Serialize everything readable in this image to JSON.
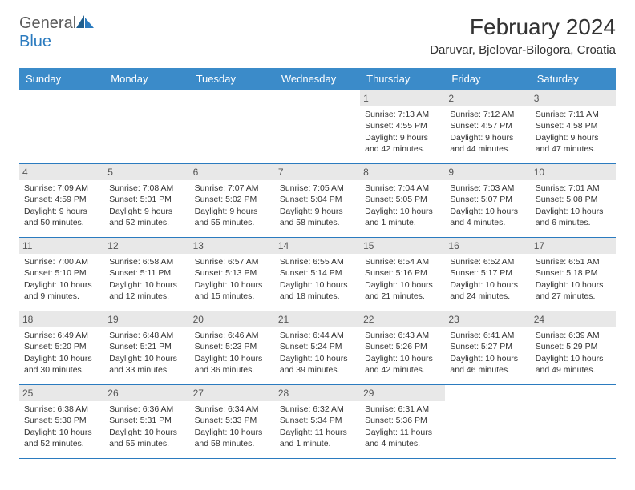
{
  "logo": {
    "text1": "General",
    "text2": "Blue"
  },
  "title": "February 2024",
  "location": "Daruvar, Bjelovar-Bilogora, Croatia",
  "colors": {
    "header_bg": "#3b8bc9",
    "border": "#2b7bbf",
    "day_bg": "#e8e8e8",
    "text": "#333333",
    "logo_gray": "#5a5a5a",
    "logo_blue": "#2b7bbf"
  },
  "weekdays": [
    "Sunday",
    "Monday",
    "Tuesday",
    "Wednesday",
    "Thursday",
    "Friday",
    "Saturday"
  ],
  "weeks": [
    [
      {
        "day": "",
        "sunrise": "",
        "sunset": "",
        "daylight": ""
      },
      {
        "day": "",
        "sunrise": "",
        "sunset": "",
        "daylight": ""
      },
      {
        "day": "",
        "sunrise": "",
        "sunset": "",
        "daylight": ""
      },
      {
        "day": "",
        "sunrise": "",
        "sunset": "",
        "daylight": ""
      },
      {
        "day": "1",
        "sunrise": "Sunrise: 7:13 AM",
        "sunset": "Sunset: 4:55 PM",
        "daylight": "Daylight: 9 hours and 42 minutes."
      },
      {
        "day": "2",
        "sunrise": "Sunrise: 7:12 AM",
        "sunset": "Sunset: 4:57 PM",
        "daylight": "Daylight: 9 hours and 44 minutes."
      },
      {
        "day": "3",
        "sunrise": "Sunrise: 7:11 AM",
        "sunset": "Sunset: 4:58 PM",
        "daylight": "Daylight: 9 hours and 47 minutes."
      }
    ],
    [
      {
        "day": "4",
        "sunrise": "Sunrise: 7:09 AM",
        "sunset": "Sunset: 4:59 PM",
        "daylight": "Daylight: 9 hours and 50 minutes."
      },
      {
        "day": "5",
        "sunrise": "Sunrise: 7:08 AM",
        "sunset": "Sunset: 5:01 PM",
        "daylight": "Daylight: 9 hours and 52 minutes."
      },
      {
        "day": "6",
        "sunrise": "Sunrise: 7:07 AM",
        "sunset": "Sunset: 5:02 PM",
        "daylight": "Daylight: 9 hours and 55 minutes."
      },
      {
        "day": "7",
        "sunrise": "Sunrise: 7:05 AM",
        "sunset": "Sunset: 5:04 PM",
        "daylight": "Daylight: 9 hours and 58 minutes."
      },
      {
        "day": "8",
        "sunrise": "Sunrise: 7:04 AM",
        "sunset": "Sunset: 5:05 PM",
        "daylight": "Daylight: 10 hours and 1 minute."
      },
      {
        "day": "9",
        "sunrise": "Sunrise: 7:03 AM",
        "sunset": "Sunset: 5:07 PM",
        "daylight": "Daylight: 10 hours and 4 minutes."
      },
      {
        "day": "10",
        "sunrise": "Sunrise: 7:01 AM",
        "sunset": "Sunset: 5:08 PM",
        "daylight": "Daylight: 10 hours and 6 minutes."
      }
    ],
    [
      {
        "day": "11",
        "sunrise": "Sunrise: 7:00 AM",
        "sunset": "Sunset: 5:10 PM",
        "daylight": "Daylight: 10 hours and 9 minutes."
      },
      {
        "day": "12",
        "sunrise": "Sunrise: 6:58 AM",
        "sunset": "Sunset: 5:11 PM",
        "daylight": "Daylight: 10 hours and 12 minutes."
      },
      {
        "day": "13",
        "sunrise": "Sunrise: 6:57 AM",
        "sunset": "Sunset: 5:13 PM",
        "daylight": "Daylight: 10 hours and 15 minutes."
      },
      {
        "day": "14",
        "sunrise": "Sunrise: 6:55 AM",
        "sunset": "Sunset: 5:14 PM",
        "daylight": "Daylight: 10 hours and 18 minutes."
      },
      {
        "day": "15",
        "sunrise": "Sunrise: 6:54 AM",
        "sunset": "Sunset: 5:16 PM",
        "daylight": "Daylight: 10 hours and 21 minutes."
      },
      {
        "day": "16",
        "sunrise": "Sunrise: 6:52 AM",
        "sunset": "Sunset: 5:17 PM",
        "daylight": "Daylight: 10 hours and 24 minutes."
      },
      {
        "day": "17",
        "sunrise": "Sunrise: 6:51 AM",
        "sunset": "Sunset: 5:18 PM",
        "daylight": "Daylight: 10 hours and 27 minutes."
      }
    ],
    [
      {
        "day": "18",
        "sunrise": "Sunrise: 6:49 AM",
        "sunset": "Sunset: 5:20 PM",
        "daylight": "Daylight: 10 hours and 30 minutes."
      },
      {
        "day": "19",
        "sunrise": "Sunrise: 6:48 AM",
        "sunset": "Sunset: 5:21 PM",
        "daylight": "Daylight: 10 hours and 33 minutes."
      },
      {
        "day": "20",
        "sunrise": "Sunrise: 6:46 AM",
        "sunset": "Sunset: 5:23 PM",
        "daylight": "Daylight: 10 hours and 36 minutes."
      },
      {
        "day": "21",
        "sunrise": "Sunrise: 6:44 AM",
        "sunset": "Sunset: 5:24 PM",
        "daylight": "Daylight: 10 hours and 39 minutes."
      },
      {
        "day": "22",
        "sunrise": "Sunrise: 6:43 AM",
        "sunset": "Sunset: 5:26 PM",
        "daylight": "Daylight: 10 hours and 42 minutes."
      },
      {
        "day": "23",
        "sunrise": "Sunrise: 6:41 AM",
        "sunset": "Sunset: 5:27 PM",
        "daylight": "Daylight: 10 hours and 46 minutes."
      },
      {
        "day": "24",
        "sunrise": "Sunrise: 6:39 AM",
        "sunset": "Sunset: 5:29 PM",
        "daylight": "Daylight: 10 hours and 49 minutes."
      }
    ],
    [
      {
        "day": "25",
        "sunrise": "Sunrise: 6:38 AM",
        "sunset": "Sunset: 5:30 PM",
        "daylight": "Daylight: 10 hours and 52 minutes."
      },
      {
        "day": "26",
        "sunrise": "Sunrise: 6:36 AM",
        "sunset": "Sunset: 5:31 PM",
        "daylight": "Daylight: 10 hours and 55 minutes."
      },
      {
        "day": "27",
        "sunrise": "Sunrise: 6:34 AM",
        "sunset": "Sunset: 5:33 PM",
        "daylight": "Daylight: 10 hours and 58 minutes."
      },
      {
        "day": "28",
        "sunrise": "Sunrise: 6:32 AM",
        "sunset": "Sunset: 5:34 PM",
        "daylight": "Daylight: 11 hours and 1 minute."
      },
      {
        "day": "29",
        "sunrise": "Sunrise: 6:31 AM",
        "sunset": "Sunset: 5:36 PM",
        "daylight": "Daylight: 11 hours and 4 minutes."
      },
      {
        "day": "",
        "sunrise": "",
        "sunset": "",
        "daylight": ""
      },
      {
        "day": "",
        "sunrise": "",
        "sunset": "",
        "daylight": ""
      }
    ]
  ]
}
